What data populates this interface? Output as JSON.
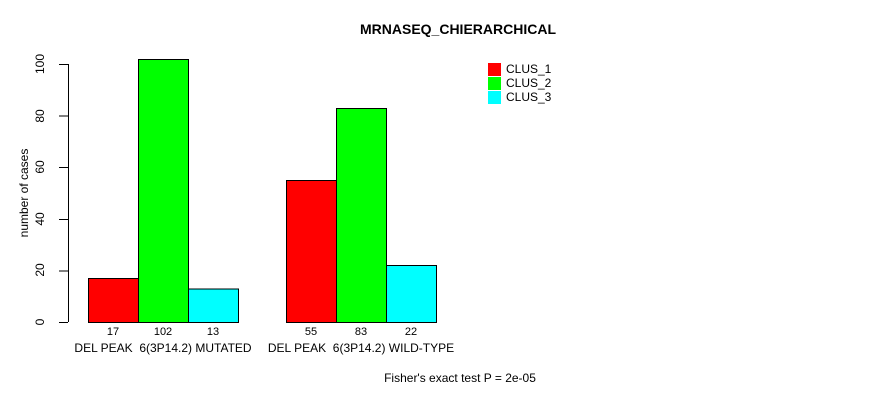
{
  "chart_data": {
    "type": "bar",
    "title": "MRNASEQ_CHIERARCHICAL",
    "ylabel": "number of cases",
    "xlabel": "",
    "annotation": "Fisher's exact test P = 2e-05",
    "categories": [
      "DEL PEAK  6(3P14.2) MUTATED",
      "DEL PEAK  6(3P14.2) WILD-TYPE"
    ],
    "series": [
      {
        "name": "CLUS_1",
        "color": "#ff0000",
        "values": [
          17,
          55
        ]
      },
      {
        "name": "CLUS_2",
        "color": "#00ff00",
        "values": [
          102,
          83
        ]
      },
      {
        "name": "CLUS_3",
        "color": "#00ffff",
        "values": [
          13,
          22
        ]
      }
    ],
    "ylim": [
      0,
      100
    ],
    "yticks": [
      0,
      20,
      40,
      60,
      80,
      100
    ],
    "grid": false,
    "axis_color": "#000000",
    "legend": {
      "position": "top-right",
      "items": [
        {
          "label": "CLUS_1",
          "color": "#ff0000"
        },
        {
          "label": "CLUS_2",
          "color": "#00ff00"
        },
        {
          "label": "CLUS_3",
          "color": "#00ffff"
        }
      ]
    }
  }
}
